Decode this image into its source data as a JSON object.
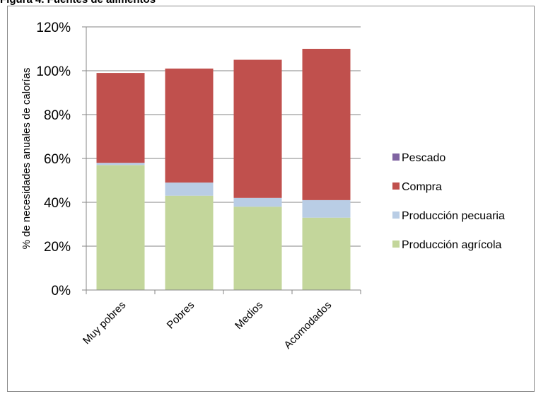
{
  "figure_title": "Figura 4. Fuentes de alimentos",
  "chart_data": {
    "type": "bar",
    "stacked": true,
    "categories": [
      "Muy pobres",
      "Pobres",
      "Medios",
      "Acomodados"
    ],
    "series": [
      {
        "name": "Producción agrícola",
        "values": [
          57,
          43,
          38,
          33
        ],
        "color": "#c3d69b"
      },
      {
        "name": "Producción pecuaria",
        "values": [
          1,
          6,
          4,
          8
        ],
        "color": "#b9cde5"
      },
      {
        "name": "Compra",
        "values": [
          41,
          52,
          63,
          69
        ],
        "color": "#c0504d"
      },
      {
        "name": "Pescado",
        "values": [
          0,
          0,
          0,
          0
        ],
        "color": "#8064a2"
      }
    ],
    "ylabel": "% de necesidades anuales de calorías",
    "xlabel": "",
    "ylim": [
      0,
      120
    ],
    "yticks": [
      "0%",
      "20%",
      "40%",
      "60%",
      "80%",
      "100%",
      "120%"
    ],
    "grid": true,
    "legend_position": "right",
    "legend_order": [
      "Pescado",
      "Compra",
      "Producción pecuaria",
      "Producción agrícola"
    ]
  }
}
